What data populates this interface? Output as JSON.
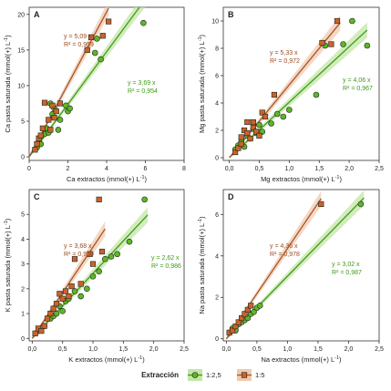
{
  "colors": {
    "green": "#5cb825",
    "green_line": "#3f9a1a",
    "green_band": "#c3e6a6",
    "green_text": "#3f9a1a",
    "orange": "#c8642a",
    "orange_line": "#a85524",
    "orange_band": "#f0c9b0",
    "orange_text": "#9b4a1f"
  },
  "legend": {
    "title": "Extracción",
    "items": [
      {
        "label": "1:2,5",
        "series": "1:2,5"
      },
      {
        "label": "1:5",
        "series": "1:5"
      }
    ]
  },
  "chart_data": [
    {
      "panel": "A",
      "type": "scatter",
      "xlabel": "Ca extractos (mmol(+) L",
      "ylabel": "Ca pasta saturada (mmol(+) L",
      "unit_exponent": "-1",
      "xlim": [
        0,
        8
      ],
      "ylim": [
        -0.5,
        21
      ],
      "xticks": [
        0,
        2,
        4,
        6,
        8
      ],
      "xticklabels": [
        "0",
        "2",
        "4",
        "6",
        "8"
      ],
      "yticks": [
        0,
        5,
        10,
        15,
        20
      ],
      "yticklabels": [
        "0",
        "5",
        "10",
        "15",
        "20"
      ],
      "grid": false,
      "series": [
        {
          "name": "1:2,5",
          "marker": "circle",
          "slope": 3.69,
          "eq": "y = 3,69 x",
          "r2": "R² = 0,954",
          "fit_x": [
            0,
            6.1
          ],
          "points": [
            [
              0.4,
              1.3
            ],
            [
              0.5,
              2.2
            ],
            [
              0.6,
              1.8
            ],
            [
              0.8,
              3.2
            ],
            [
              0.9,
              4.0
            ],
            [
              1.0,
              3.4
            ],
            [
              1.1,
              7.5
            ],
            [
              1.2,
              6.0
            ],
            [
              1.3,
              6.8
            ],
            [
              1.5,
              3.8
            ],
            [
              1.6,
              5.2
            ],
            [
              1.9,
              7.2
            ],
            [
              2.0,
              6.4
            ],
            [
              2.1,
              6.8
            ],
            [
              3.4,
              14.6
            ],
            [
              3.5,
              16.6
            ],
            [
              3.7,
              13.7
            ],
            [
              5.9,
              18.8
            ]
          ]
        },
        {
          "name": "1:5",
          "marker": "square",
          "slope": 5.09,
          "eq": "y = 5,09 x",
          "r2": "R² = 0,959",
          "fit_x": [
            0,
            4.1
          ],
          "points": [
            [
              0.3,
              1.0
            ],
            [
              0.4,
              1.8
            ],
            [
              0.5,
              2.6
            ],
            [
              0.6,
              3.0
            ],
            [
              0.7,
              4.0
            ],
            [
              0.8,
              7.6
            ],
            [
              1.0,
              5.2
            ],
            [
              1.1,
              3.8
            ],
            [
              1.2,
              7.2
            ],
            [
              1.3,
              5.5
            ],
            [
              1.4,
              6.4
            ],
            [
              1.6,
              7.5
            ],
            [
              3.0,
              15.0
            ],
            [
              3.2,
              16.8
            ],
            [
              3.8,
              17.0
            ],
            [
              4.1,
              19.0
            ]
          ]
        }
      ]
    },
    {
      "panel": "B",
      "type": "scatter",
      "xlabel": "Mg extractos (mmol(+) L",
      "ylabel": "Mg pasta saturada (mmol(+) L",
      "unit_exponent": "-1",
      "xlim": [
        -0.1,
        2.5
      ],
      "ylim": [
        -0.2,
        11
      ],
      "xticks": [
        0.0,
        0.5,
        1.0,
        1.5,
        2.0,
        2.5
      ],
      "xticklabels": [
        "0,0",
        "0,5",
        "1,0",
        "1,5",
        "2,0",
        "2,5"
      ],
      "yticks": [
        0,
        2,
        4,
        6,
        8,
        10
      ],
      "yticklabels": [
        "0",
        "2",
        "4",
        "6",
        "8",
        "10"
      ],
      "grid": false,
      "series": [
        {
          "name": "1:2,5",
          "marker": "circle",
          "slope": 4.06,
          "eq": "y = 4,06 x",
          "r2": "R² = 0,967",
          "fit_x": [
            0,
            2.3
          ],
          "points": [
            [
              0.1,
              0.6
            ],
            [
              0.15,
              0.9
            ],
            [
              0.2,
              1.2
            ],
            [
              0.25,
              0.8
            ],
            [
              0.3,
              1.6
            ],
            [
              0.35,
              1.4
            ],
            [
              0.4,
              2.1
            ],
            [
              0.45,
              1.8
            ],
            [
              0.5,
              2.4
            ],
            [
              0.55,
              1.9
            ],
            [
              0.7,
              2.5
            ],
            [
              0.8,
              3.2
            ],
            [
              0.9,
              3.0
            ],
            [
              1.0,
              3.5
            ],
            [
              1.45,
              4.6
            ],
            [
              1.6,
              8.2
            ],
            [
              1.9,
              8.3
            ],
            [
              2.05,
              10.0
            ],
            [
              2.3,
              8.2
            ]
          ]
        },
        {
          "name": "1:5",
          "marker": "square",
          "slope": 5.33,
          "eq": "y = 5,33 x",
          "r2": "R² = 0,972",
          "fit_x": [
            0,
            1.85
          ],
          "points": [
            [
              0.1,
              0.4
            ],
            [
              0.15,
              0.7
            ],
            [
              0.2,
              1.0
            ],
            [
              0.2,
              1.5
            ],
            [
              0.25,
              2.0
            ],
            [
              0.3,
              1.8
            ],
            [
              0.3,
              2.6
            ],
            [
              0.35,
              1.4
            ],
            [
              0.4,
              2.6
            ],
            [
              0.4,
              2.2
            ],
            [
              0.45,
              1.9
            ],
            [
              0.5,
              1.6
            ],
            [
              0.55,
              3.3
            ],
            [
              0.6,
              3.0
            ],
            [
              0.75,
              4.6
            ],
            [
              1.55,
              8.4
            ],
            [
              1.7,
              8.3
            ],
            [
              1.8,
              10.0
            ]
          ]
        }
      ]
    },
    {
      "panel": "C",
      "type": "scatter",
      "xlabel": "K extractos (mmol(+) L",
      "ylabel": "K pasta saturada (mmol(+) L",
      "unit_exponent": "-1",
      "xlim": [
        -0.05,
        2.5
      ],
      "ylim": [
        -0.1,
        6.0
      ],
      "xticks": [
        0.0,
        0.5,
        1.0,
        1.5,
        2.0,
        2.5
      ],
      "xticklabels": [
        "0,0",
        "0,5",
        "1,0",
        "1,5",
        "2,0",
        "2,5"
      ],
      "yticks": [
        0,
        1,
        2,
        3,
        4,
        5
      ],
      "yticklabels": [
        "0",
        "1",
        "2",
        "3",
        "4",
        "5"
      ],
      "grid": false,
      "series": [
        {
          "name": "1:2,5",
          "marker": "circle",
          "slope": 2.62,
          "eq": "y = 2,62 x",
          "r2": "R² = 0,986",
          "fit_x": [
            0,
            1.9
          ],
          "points": [
            [
              0.1,
              0.3
            ],
            [
              0.2,
              0.5
            ],
            [
              0.3,
              0.8
            ],
            [
              0.35,
              0.9
            ],
            [
              0.4,
              1.0
            ],
            [
              0.45,
              1.3
            ],
            [
              0.5,
              1.1
            ],
            [
              0.55,
              1.5
            ],
            [
              0.6,
              1.6
            ],
            [
              0.7,
              1.9
            ],
            [
              0.8,
              1.7
            ],
            [
              0.9,
              2.0
            ],
            [
              1.0,
              2.5
            ],
            [
              1.1,
              2.7
            ],
            [
              1.2,
              3.2
            ],
            [
              1.3,
              3.3
            ],
            [
              1.4,
              3.4
            ],
            [
              1.6,
              3.9
            ],
            [
              1.85,
              5.6
            ]
          ]
        },
        {
          "name": "1:5",
          "marker": "square",
          "slope": 3.68,
          "eq": "y = 3,68 x",
          "r2": "R² = 0,960",
          "fit_x": [
            0,
            1.2
          ],
          "points": [
            [
              0.05,
              0.2
            ],
            [
              0.1,
              0.4
            ],
            [
              0.15,
              0.3
            ],
            [
              0.2,
              0.5
            ],
            [
              0.25,
              0.8
            ],
            [
              0.3,
              1.0
            ],
            [
              0.35,
              1.2
            ],
            [
              0.4,
              1.4
            ],
            [
              0.45,
              1.8
            ],
            [
              0.5,
              1.6
            ],
            [
              0.55,
              1.9
            ],
            [
              0.6,
              1.7
            ],
            [
              0.65,
              2.1
            ],
            [
              0.7,
              3.2
            ],
            [
              0.8,
              2.2
            ],
            [
              0.95,
              3.4
            ],
            [
              1.0,
              3.0
            ],
            [
              1.1,
              5.6
            ],
            [
              1.15,
              3.5
            ]
          ]
        }
      ]
    },
    {
      "panel": "D",
      "type": "scatter",
      "xlabel": "Na extractos (mmol(+) L",
      "ylabel": "Na pasta saturada (mmol(+) L",
      "unit_exponent": "-1",
      "xlim": [
        -0.05,
        2.5
      ],
      "ylim": [
        -0.1,
        7.2
      ],
      "xticks": [
        0.0,
        0.5,
        1.0,
        1.5,
        2.0,
        2.5
      ],
      "xticklabels": [
        "0,0",
        "0,5",
        "1,0",
        "1,5",
        "2,0",
        "2,5"
      ],
      "yticks": [
        0,
        2,
        4,
        6
      ],
      "yticklabels": [
        "0",
        "2",
        "4",
        "6"
      ],
      "grid": false,
      "series": [
        {
          "name": "1:2,5",
          "marker": "circle",
          "slope": 3.02,
          "eq": "y = 3,02 x",
          "r2": "R² = 0,987",
          "fit_x": [
            0,
            2.25
          ],
          "points": [
            [
              0.05,
              0.3
            ],
            [
              0.1,
              0.5
            ],
            [
              0.15,
              0.4
            ],
            [
              0.2,
              0.7
            ],
            [
              0.25,
              0.8
            ],
            [
              0.3,
              0.9
            ],
            [
              0.35,
              1.0
            ],
            [
              0.4,
              1.2
            ],
            [
              0.45,
              1.3
            ],
            [
              0.5,
              1.5
            ],
            [
              0.55,
              1.6
            ],
            [
              2.2,
              6.5
            ]
          ]
        },
        {
          "name": "1:5",
          "marker": "square",
          "slope": 4.36,
          "eq": "y = 4,36 x",
          "r2": "R² = 0,978",
          "fit_x": [
            0,
            1.55
          ],
          "points": [
            [
              0.05,
              0.3
            ],
            [
              0.1,
              0.4
            ],
            [
              0.15,
              0.6
            ],
            [
              0.2,
              0.8
            ],
            [
              0.25,
              1.0
            ],
            [
              0.3,
              1.2
            ],
            [
              0.35,
              1.4
            ],
            [
              0.4,
              1.6
            ],
            [
              1.55,
              6.5
            ]
          ]
        }
      ]
    }
  ]
}
